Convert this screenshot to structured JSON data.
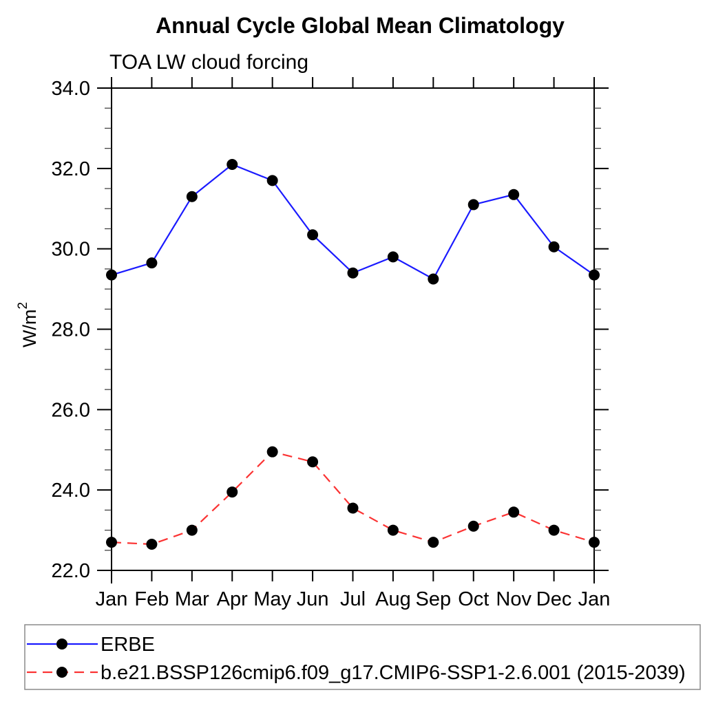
{
  "page": {
    "background_color": "#ffffff",
    "text_color": "#000000"
  },
  "chart_data": {
    "type": "line",
    "title": "Annual Cycle Global Mean Climatology",
    "subtitle": "TOA LW cloud forcing",
    "ylabel_base": "W/m",
    "ylabel_exponent": "2",
    "categories": [
      "Jan",
      "Feb",
      "Mar",
      "Apr",
      "May",
      "Jun",
      "Jul",
      "Aug",
      "Sep",
      "Oct",
      "Nov",
      "Dec",
      "Jan"
    ],
    "ylim": [
      22.0,
      34.0
    ],
    "ytick_major_step": 2.0,
    "ytick_minor_step": 0.5,
    "ytick_label_format": "one-decimal",
    "grid": false,
    "legend_position": "bottom-left-box",
    "series": [
      {
        "name": "ERBE",
        "color": "#1a1aff",
        "line_style": "solid",
        "marker": "filled-circle",
        "marker_color": "#000000",
        "values": [
          29.35,
          29.65,
          31.3,
          32.1,
          31.7,
          30.35,
          29.4,
          29.8,
          29.25,
          31.1,
          31.35,
          30.05,
          29.35
        ]
      },
      {
        "name": "b.e21.BSSP126cmip6.f09_g17.CMIP6-SSP1-2.6.001 (2015-2039)",
        "color": "#fb3333",
        "line_style": "dashed",
        "marker": "filled-circle",
        "marker_color": "#000000",
        "values": [
          22.7,
          22.65,
          23.0,
          23.95,
          24.95,
          24.7,
          23.55,
          23.0,
          22.7,
          23.1,
          23.45,
          23.0,
          22.7
        ]
      }
    ]
  }
}
